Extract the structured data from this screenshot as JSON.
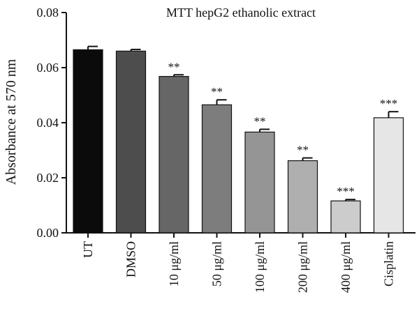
{
  "chart_data": {
    "type": "bar",
    "title": "MTT hepG2 ethanolic extract",
    "xlabel": "",
    "ylabel": "Absorbance at 570 nm",
    "ylim": [
      0,
      0.08
    ],
    "yticks": [
      "0.00",
      "0.02",
      "0.04",
      "0.06",
      "0.08"
    ],
    "categories": [
      "UT",
      "DMSO",
      "10 μg/ml",
      "50 μg/ml",
      "100 μg/ml",
      "200 μg/ml",
      "400 μg/ml",
      "Cisplatin"
    ],
    "values": [
      0.0665,
      0.066,
      0.0568,
      0.0465,
      0.0366,
      0.0262,
      0.0116,
      0.0418
    ],
    "errors": [
      0.0012,
      0.0006,
      0.0006,
      0.0018,
      0.001,
      0.001,
      0.0005,
      0.0022
    ],
    "significance": [
      "",
      "",
      "**",
      "**",
      "**",
      "**",
      "***",
      "***"
    ],
    "bar_colors": [
      "#0b0b0b",
      "#4d4d4d",
      "#666666",
      "#7d7d7d",
      "#959595",
      "#afafaf",
      "#cccccc",
      "#e6e6e6"
    ],
    "grid": false,
    "legend": "none"
  }
}
